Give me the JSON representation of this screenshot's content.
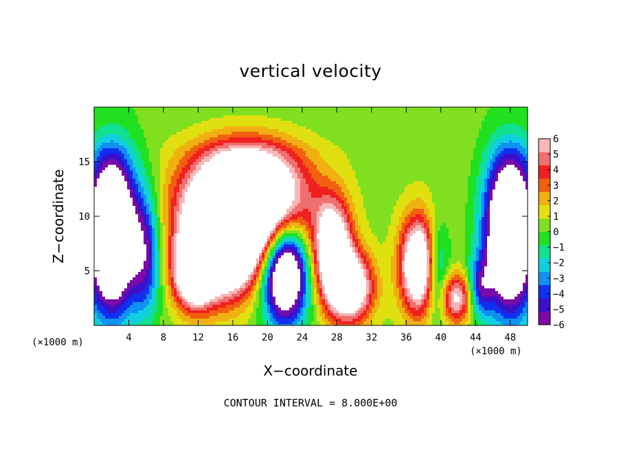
{
  "chart_data": {
    "type": "heatmap",
    "title": "vertical velocity",
    "xlabel": "X−coordinate",
    "ylabel": "Z−coordinate",
    "x_unit_label": "(×1000 m)",
    "x_unit_label_right": "(×1000 m)",
    "xlim": [
      0,
      50
    ],
    "ylim": [
      0,
      20
    ],
    "xticks": [
      4,
      8,
      12,
      16,
      20,
      24,
      28,
      32,
      36,
      40,
      44,
      48
    ],
    "xtick_labels": [
      "4",
      "8",
      "12",
      "16",
      "20",
      "24",
      "28",
      "32",
      "36",
      "40",
      "44",
      "48"
    ],
    "yticks": [
      5,
      10,
      15
    ],
    "ytick_labels": [
      "5",
      "10",
      "15"
    ],
    "colorbar": {
      "min": -6,
      "max": 6,
      "ticks": [
        6,
        5,
        4,
        3,
        2,
        1,
        0,
        -1,
        -2,
        -3,
        -4,
        -5,
        -6
      ],
      "tick_labels": [
        "6",
        "5",
        "4",
        "3",
        "2",
        "1",
        "0",
        "−1",
        "−2",
        "−3",
        "−4",
        "−5",
        "−6"
      ],
      "colors": [
        "#7b0aa8",
        "#3a10c8",
        "#1030f0",
        "#1090f0",
        "#10d0e0",
        "#10e090",
        "#20e020",
        "#80e020",
        "#e0e010",
        "#f0b010",
        "#f06010",
        "#f02020",
        "#f07070",
        "#f8b8b8"
      ],
      "above_max_color": "#ffffff",
      "below_min_color": "#ffffff"
    },
    "features": [
      {
        "kind": "updraft",
        "x": 17.5,
        "z": 11.5,
        "peak": 14,
        "sx": 4.5,
        "sz": 3.5
      },
      {
        "kind": "updraft",
        "x": 14.5,
        "z": 7.0,
        "peak": 12,
        "sx": 3.0,
        "sz": 3.0
      },
      {
        "kind": "updraft",
        "x": 11.5,
        "z": 4.5,
        "peak": 8,
        "sx": 1.5,
        "sz": 2.0
      },
      {
        "kind": "updraft",
        "x": 27.5,
        "z": 7.0,
        "peak": 9,
        "sx": 1.5,
        "sz": 3.0
      },
      {
        "kind": "updraft",
        "x": 29.5,
        "z": 3.5,
        "peak": 9,
        "sx": 1.8,
        "sz": 2.2
      },
      {
        "kind": "updraft",
        "x": 37.5,
        "z": 5.5,
        "peak": 10,
        "sx": 1.5,
        "sz": 3.0
      },
      {
        "kind": "updraft",
        "x": 41.8,
        "z": 2.5,
        "peak": 6,
        "sx": 1.3,
        "sz": 1.6
      },
      {
        "kind": "downdraft",
        "x": 22.0,
        "z": 4.8,
        "peak": -12,
        "sx": 1.8,
        "sz": 3.2
      },
      {
        "kind": "downdraft",
        "x": 2.0,
        "z": 8.5,
        "peak": -14,
        "sx": 2.0,
        "sz": 5.0
      },
      {
        "kind": "downdraft",
        "x": 48.0,
        "z": 8.5,
        "peak": -14,
        "sx": 2.0,
        "sz": 5.0
      },
      {
        "kind": "downdraft",
        "x": 6.0,
        "z": 6.5,
        "peak": -5,
        "sx": 1.2,
        "sz": 4.0
      },
      {
        "kind": "downdraft",
        "x": 39.5,
        "z": 5.0,
        "peak": -5,
        "sx": 1.0,
        "sz": 3.0
      },
      {
        "kind": "downdraft",
        "x": 44.5,
        "z": 3.5,
        "peak": -4.5,
        "sx": 1.0,
        "sz": 2.0
      }
    ],
    "contour_interval": 8.0,
    "annotations": [
      "CONTOUR INTERVAL = 8.000E+00"
    ]
  }
}
